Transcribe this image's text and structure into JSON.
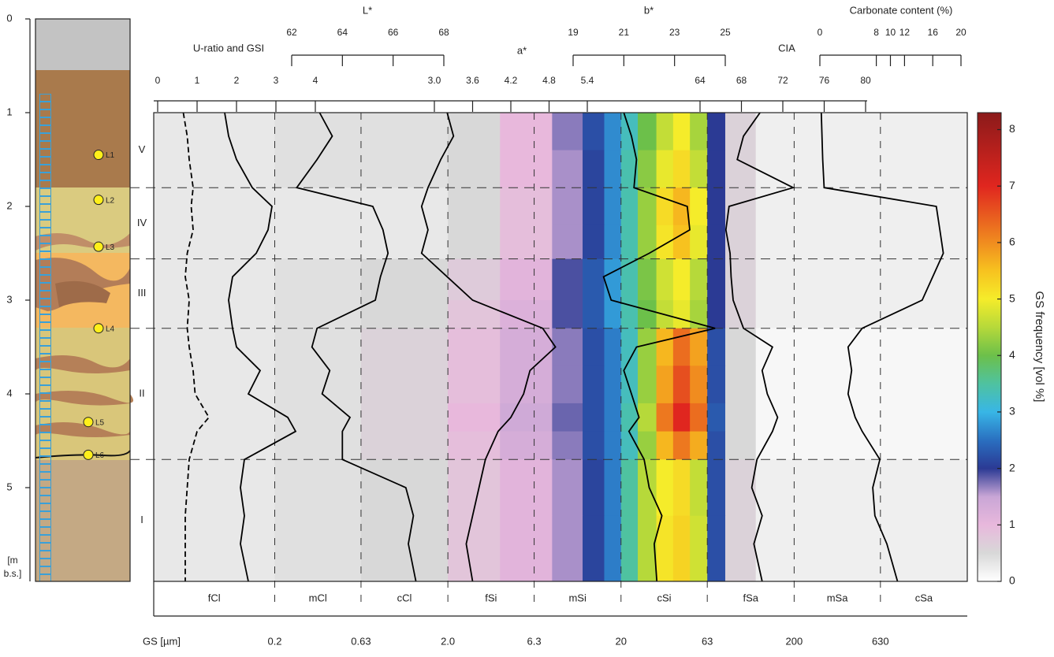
{
  "chart_data": {
    "type": "depth-profile",
    "depth_axis": {
      "ylim": [
        0,
        6
      ],
      "yticks": [
        0,
        1,
        2,
        3,
        4,
        5
      ],
      "label": [
        "[m",
        "b.s.]"
      ]
    },
    "units": {
      "names": [
        "V",
        "IV",
        "III",
        "II",
        "I"
      ],
      "boundaries": [
        1,
        1.8,
        2.56,
        3.3,
        4.7,
        6
      ]
    },
    "samples": {
      "names": [
        "L1",
        "L2",
        "L3",
        "L4",
        "L5",
        "L6"
      ],
      "depths": [
        1.45,
        1.93,
        2.43,
        3.3,
        4.3,
        4.65
      ]
    },
    "gs_axis": {
      "label": "GS [µm]",
      "xlim": [
        0.04,
        2000
      ],
      "log": true,
      "classes": [
        "fCl",
        "mCl",
        "cCl",
        "fSi",
        "mSi",
        "cSi",
        "fSa",
        "mSa",
        "cSa"
      ],
      "boundaries": [
        0.2,
        0.63,
        {
          "value": 2,
          "label": "2.0"
        },
        6.3,
        20,
        63,
        200,
        630
      ]
    },
    "heatmap": {
      "depths": [
        1.0,
        1.4,
        1.8,
        2.2,
        2.56,
        3.0,
        3.3,
        3.7,
        4.1,
        4.4,
        4.7,
        5.3,
        6.0
      ],
      "bins": [
        0.04,
        0.2,
        0.63,
        2,
        4,
        8,
        12,
        16,
        20,
        25,
        32,
        40,
        50,
        63,
        80,
        120,
        2000
      ],
      "values": [
        [
          0.3,
          0.4,
          0.4,
          0.5,
          1.0,
          1.7,
          2.2,
          2.7,
          3.3,
          4.0,
          4.6,
          5.0,
          4.4,
          2.0,
          0.6,
          0.2
        ],
        [
          0.3,
          0.4,
          0.4,
          0.5,
          1.0,
          1.6,
          2.1,
          2.7,
          3.4,
          4.2,
          4.9,
          5.2,
          4.6,
          2.0,
          0.6,
          0.2
        ],
        [
          0.3,
          0.3,
          0.3,
          0.5,
          0.9,
          1.6,
          2.1,
          2.7,
          3.4,
          4.3,
          5.2,
          5.6,
          5.0,
          2.0,
          0.6,
          0.2
        ],
        [
          0.3,
          0.3,
          0.3,
          0.5,
          0.9,
          1.6,
          2.1,
          2.7,
          3.4,
          4.3,
          5.1,
          5.5,
          4.9,
          2.0,
          0.6,
          0.2
        ],
        [
          0.3,
          0.4,
          0.5,
          0.7,
          1.1,
          1.9,
          2.3,
          2.8,
          3.4,
          4.1,
          4.7,
          5.0,
          4.5,
          2.0,
          0.6,
          0.2
        ],
        [
          0.3,
          0.4,
          0.5,
          0.8,
          1.2,
          1.9,
          2.3,
          2.8,
          3.4,
          4.0,
          4.6,
          4.9,
          4.4,
          2.0,
          0.6,
          0.2
        ],
        [
          0.3,
          0.4,
          0.6,
          0.9,
          1.3,
          1.7,
          2.2,
          2.6,
          3.3,
          4.3,
          5.6,
          6.3,
          5.8,
          2.2,
          0.5,
          0.1
        ],
        [
          0.3,
          0.4,
          0.6,
          0.9,
          1.3,
          1.7,
          2.2,
          2.6,
          3.3,
          4.3,
          5.8,
          6.6,
          6.0,
          2.2,
          0.5,
          0.1
        ],
        [
          0.3,
          0.4,
          0.6,
          1.0,
          1.4,
          1.8,
          2.2,
          2.6,
          3.4,
          4.5,
          6.2,
          7.0,
          6.3,
          2.3,
          0.5,
          0.1
        ],
        [
          0.3,
          0.4,
          0.6,
          0.9,
          1.3,
          1.7,
          2.2,
          2.6,
          3.3,
          4.3,
          5.6,
          6.2,
          5.7,
          2.2,
          0.5,
          0.1
        ],
        [
          0.3,
          0.4,
          0.5,
          0.8,
          1.1,
          1.6,
          2.1,
          2.6,
          3.5,
          4.5,
          5.0,
          5.2,
          4.6,
          2.2,
          0.6,
          0.2
        ],
        [
          0.3,
          0.4,
          0.5,
          0.8,
          1.1,
          1.6,
          2.1,
          2.6,
          3.5,
          4.5,
          5.1,
          5.3,
          4.7,
          2.2,
          0.6,
          0.2
        ]
      ]
    },
    "colorbar": {
      "label": "GS frequency [vol %]",
      "clim": [
        0,
        8.3
      ],
      "ticks": [
        0,
        1,
        2,
        3,
        4,
        5,
        6,
        7,
        8
      ],
      "stops": [
        0,
        0.5,
        1,
        1.5,
        2,
        2.5,
        3,
        3.5,
        4,
        4.5,
        5,
        5.5,
        6,
        7,
        8.3
      ],
      "colors": [
        "#ffffff",
        "#d8d8d8",
        "#e8b8dc",
        "#c9a6d6",
        "#2b3a94",
        "#2a6fc0",
        "#38b6e6",
        "#4fc2a0",
        "#6cc04a",
        "#b6d93a",
        "#f5ec2a",
        "#f7c21f",
        "#f08c1f",
        "#e0261f",
        "#8b1a1a"
      ]
    },
    "profile_axes": [
      {
        "title": "U-ratio and GSI",
        "xlim": [
          0,
          4
        ],
        "ticks": [
          0,
          1,
          2,
          3,
          4
        ]
      },
      {
        "title": "L*",
        "xlim": [
          62,
          68
        ],
        "ticks": [
          62,
          64,
          66,
          68
        ]
      },
      {
        "title": "a*",
        "xlim": [
          3,
          5.4
        ],
        "ticks": [
          {
            "value": 3,
            "label": "3.0"
          },
          3.6,
          4.2,
          4.8,
          5.4
        ]
      },
      {
        "title": "b*",
        "xlim": [
          19,
          25
        ],
        "ticks": [
          19,
          21,
          23,
          25
        ]
      },
      {
        "title": "CIA",
        "xlim": [
          64,
          80
        ],
        "ticks": [
          64,
          68,
          72,
          76,
          80
        ]
      },
      {
        "title": "Carbonate content (%)",
        "xlim": [
          0,
          20
        ],
        "ticks": [
          0,
          8,
          10,
          12,
          16,
          20
        ]
      }
    ],
    "profile_depths": [
      1.0,
      1.25,
      1.5,
      1.8,
      2.0,
      2.25,
      2.5,
      2.75,
      3.0,
      3.3,
      3.5,
      3.75,
      4.0,
      4.25,
      4.4,
      4.7,
      5.0,
      5.3,
      5.6,
      6.0
    ],
    "profiles": [
      {
        "axis": 0,
        "dashed": true,
        "color": "#000000",
        "values": [
          0.65,
          0.75,
          0.8,
          0.9,
          0.85,
          0.9,
          0.75,
          0.7,
          0.8,
          0.75,
          0.8,
          0.9,
          0.95,
          1.3,
          1.0,
          0.8,
          0.75,
          0.7,
          0.7,
          0.7
        ]
      },
      {
        "axis": 0,
        "dashed": false,
        "color": "#000000",
        "values": [
          1.7,
          1.8,
          2.0,
          2.4,
          2.9,
          2.8,
          2.5,
          1.9,
          1.8,
          1.9,
          2.0,
          2.6,
          2.3,
          3.3,
          3.5,
          2.2,
          2.1,
          2.2,
          2.1,
          2.3
        ]
      },
      {
        "axis": 1,
        "dashed": false,
        "color": "#000000",
        "values": [
          63.1,
          63.6,
          63.0,
          62.2,
          65.2,
          65.6,
          65.8,
          65.5,
          65.3,
          63.0,
          62.8,
          63.5,
          63.2,
          64.3,
          64.0,
          64.0,
          66.5,
          66.8,
          66.6,
          66.9
        ]
      },
      {
        "axis": 2,
        "dashed": false,
        "color": "#000000",
        "values": [
          3.2,
          3.3,
          3.1,
          2.9,
          2.8,
          2.9,
          2.8,
          3.2,
          3.6,
          4.7,
          4.9,
          4.5,
          4.4,
          4.2,
          4.0,
          3.8,
          3.7,
          3.6,
          3.5,
          3.6
        ]
      },
      {
        "axis": 3,
        "dashed": false,
        "color": "#000000",
        "values": [
          21.0,
          21.3,
          21.5,
          21.4,
          23.5,
          23.6,
          22.0,
          20.2,
          20.5,
          24.6,
          21.5,
          21.0,
          21.3,
          21.6,
          21.2,
          21.8,
          22.0,
          22.5,
          22.2,
          22.3
        ]
      },
      {
        "axis": 4,
        "dashed": false,
        "color": "#000000",
        "values": [
          69.8,
          68.2,
          67.6,
          73.0,
          66.8,
          66.5,
          66.9,
          67.0,
          67.2,
          68.2,
          71.0,
          70.0,
          70.5,
          71.5,
          71.0,
          69.5,
          69.0,
          70.0,
          69.2,
          70.0
        ]
      },
      {
        "axis": 5,
        "dashed": false,
        "color": "#000000",
        "values": [
          0.2,
          0.3,
          0.4,
          0.6,
          16.5,
          17.0,
          17.5,
          16.0,
          14.5,
          6.0,
          4.0,
          4.5,
          4.0,
          5.0,
          6.0,
          8.5,
          7.5,
          7.8,
          9.5,
          11.0
        ]
      }
    ]
  }
}
